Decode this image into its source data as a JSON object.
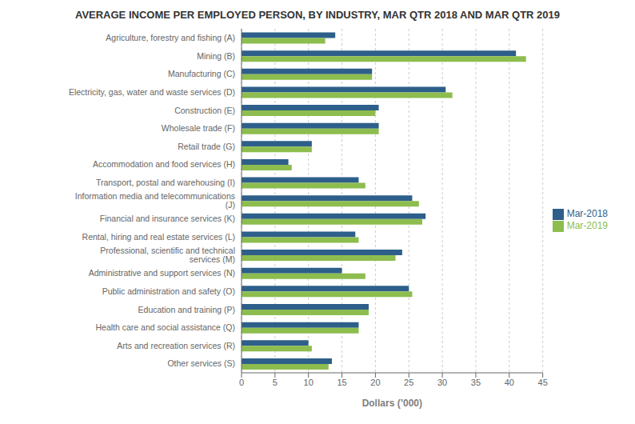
{
  "chart_data": {
    "type": "bar",
    "orientation": "horizontal",
    "title": "AVERAGE INCOME PER EMPLOYED PERSON, BY INDUSTRY, MAR QTR 2018 AND MAR QTR 2019",
    "xlabel": "Dollars (’000)",
    "categories": [
      "Agriculture, forestry and fishing (A)",
      "Mining (B)",
      "Manufacturing (C)",
      "Electricity, gas, water and waste services (D)",
      "Construction (E)",
      "Wholesale trade (F)",
      "Retail trade (G)",
      "Accommodation and food services (H)",
      "Transport, postal and warehousing (I)",
      "Information media and telecommunications (J)",
      "Financial and insurance services (K)",
      "Rental, hiring and real estate services (L)",
      "Professional, scientific and technical services (M)",
      "Administrative and support services (N)",
      "Public administration and safety (O)",
      "Education and training (P)",
      "Health care and social assistance (Q)",
      "Arts and recreation services (R)",
      "Other services (S)"
    ],
    "series": [
      {
        "name": "Mar-2018",
        "color": "#2E5F8A",
        "values": [
          14.0,
          41.0,
          19.5,
          30.5,
          20.5,
          20.5,
          10.5,
          7.0,
          17.5,
          25.5,
          27.5,
          17.0,
          24.0,
          15.0,
          25.0,
          19.0,
          17.5,
          10.0,
          13.5
        ]
      },
      {
        "name": "Mar-2019",
        "color": "#8DBD4E",
        "values": [
          12.5,
          42.5,
          19.5,
          31.5,
          20.0,
          20.5,
          10.5,
          7.5,
          18.5,
          26.5,
          27.0,
          17.5,
          23.0,
          18.5,
          25.5,
          19.0,
          17.5,
          10.5,
          13.0
        ]
      }
    ],
    "xlim": [
      0,
      45
    ],
    "xticks": [
      0,
      5,
      10,
      15,
      20,
      25,
      30,
      35,
      40,
      45
    ],
    "grid": true,
    "legend": "right"
  }
}
